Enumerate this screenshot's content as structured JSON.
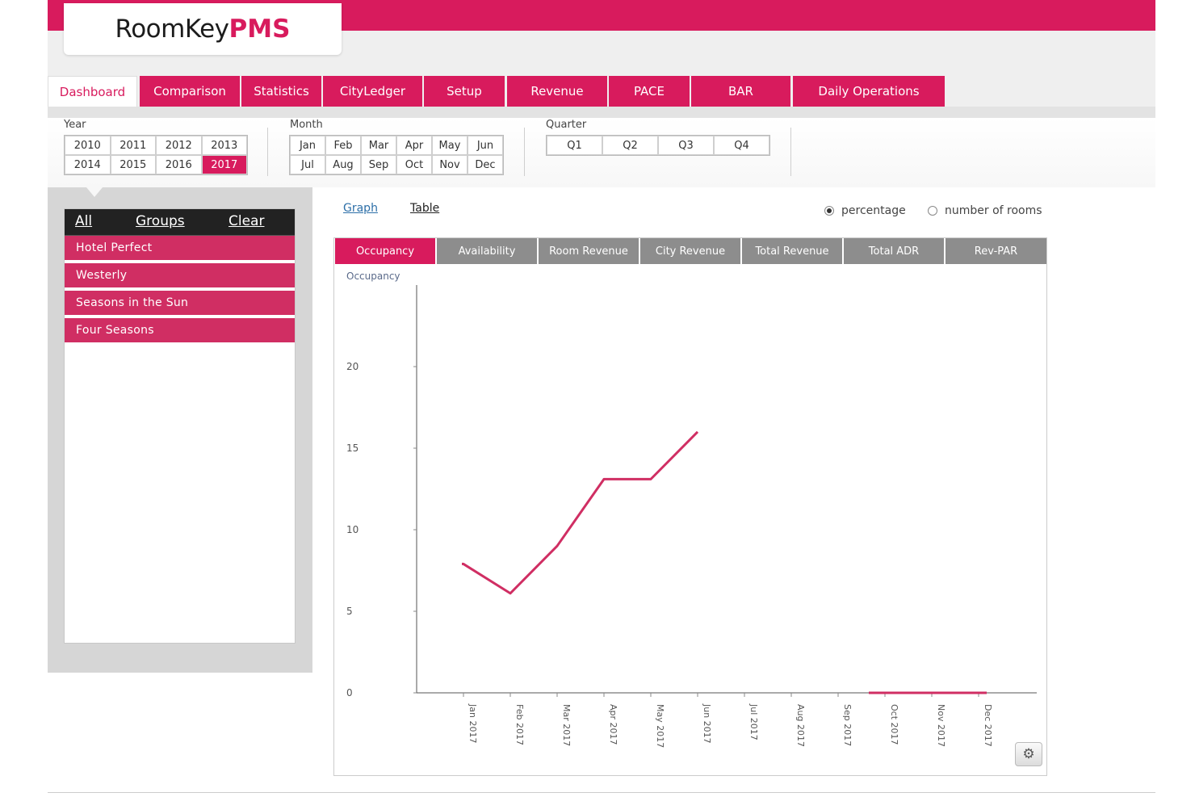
{
  "brand": {
    "part1": "RoomKey",
    "part2": "PMS"
  },
  "colors": {
    "accent": "#d81b5d",
    "tab_inactive": "#8d8d8d"
  },
  "nav_tabs": [
    {
      "label": "Dashboard",
      "active": true
    },
    {
      "label": "Comparison"
    },
    {
      "label": "Statistics"
    },
    {
      "label": "CityLedger"
    },
    {
      "label": "Setup"
    },
    {
      "label": "Revenue"
    },
    {
      "label": "PACE"
    },
    {
      "label": "BAR"
    },
    {
      "label": "Daily Operations"
    }
  ],
  "filters": {
    "year_label": "Year",
    "years": [
      "2010",
      "2011",
      "2012",
      "2013",
      "2014",
      "2015",
      "2016",
      "2017"
    ],
    "selected_year": "2017",
    "month_label": "Month",
    "months": [
      "Jan",
      "Feb",
      "Mar",
      "Apr",
      "May",
      "Jun",
      "Jul",
      "Aug",
      "Sep",
      "Oct",
      "Nov",
      "Dec"
    ],
    "quarter_label": "Quarter",
    "quarters": [
      "Q1",
      "Q2",
      "Q3",
      "Q4"
    ]
  },
  "sidebar": {
    "header": {
      "all": "All",
      "groups": "Groups",
      "clear": "Clear"
    },
    "hotels": [
      "Hotel Perfect",
      "Westerly",
      "Seasons in the Sun",
      "Four Seasons"
    ]
  },
  "view": {
    "graph_link": "Graph",
    "table_link": "Table",
    "radio_percentage": "percentage",
    "radio_rooms": "number of rooms",
    "selected_radio": "percentage"
  },
  "metric_tabs": [
    {
      "label": "Occupancy",
      "active": true
    },
    {
      "label": "Availability"
    },
    {
      "label": "Room Revenue"
    },
    {
      "label": "City Revenue"
    },
    {
      "label": "Total Revenue"
    },
    {
      "label": "Total ADR"
    },
    {
      "label": "Rev-PAR"
    }
  ],
  "chart_data": {
    "type": "line",
    "title": "",
    "ylabel": "Occupancy",
    "xlabel": "",
    "ylim": [
      0,
      25
    ],
    "yticks": [
      0,
      5,
      10,
      15,
      20
    ],
    "categories": [
      "Jan 2017",
      "Feb 2017",
      "Mar 2017",
      "Apr 2017",
      "May 2017",
      "Jun 2017",
      "Jul 2017",
      "Aug 2017",
      "Sep 2017",
      "Oct 2017",
      "Nov 2017",
      "Dec 2017"
    ],
    "series": [
      {
        "color": "#d02e63",
        "values": [
          7.9,
          6.1,
          9.0,
          13.1,
          13.1,
          16.0,
          null,
          null,
          null,
          0,
          0,
          0
        ]
      }
    ],
    "grid": false,
    "legend": "none"
  },
  "icons": {
    "settings": "gear-icon"
  }
}
